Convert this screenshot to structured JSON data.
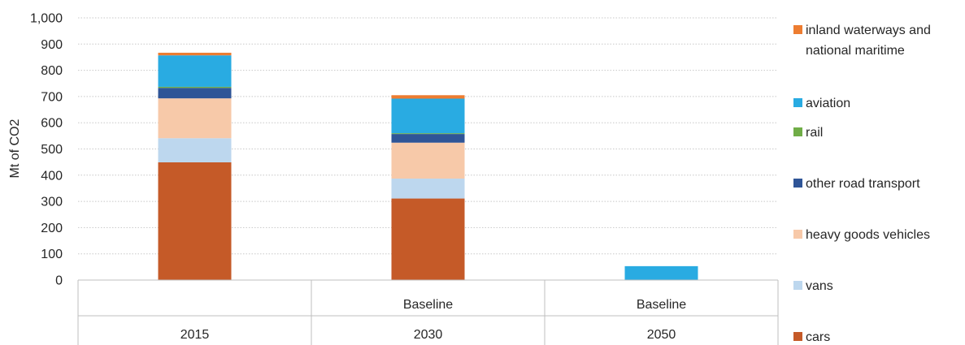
{
  "chart_data": {
    "type": "bar",
    "stacked": true,
    "ylabel": "Mt of CO2",
    "ylim": [
      0,
      1000
    ],
    "yticks": [
      "0",
      "100",
      "200",
      "300",
      "400",
      "500",
      "600",
      "700",
      "800",
      "900",
      "1,000"
    ],
    "ytick_values": [
      0,
      100,
      200,
      300,
      400,
      500,
      600,
      700,
      800,
      900,
      1000
    ],
    "grid": "horizontal dotted",
    "legend_position": "right",
    "categories": [
      {
        "label_top": "",
        "label_bottom": "2015"
      },
      {
        "label_top": "Baseline",
        "label_bottom": "2030"
      },
      {
        "label_top": "Baseline",
        "label_bottom": "2050"
      }
    ],
    "series": [
      {
        "name": "cars",
        "color": "#c55a28",
        "values": [
          449,
          311,
          0
        ]
      },
      {
        "name": "vans",
        "color": "#bdd7ee",
        "values": [
          92,
          76,
          0
        ]
      },
      {
        "name": "heavy goods vehicles",
        "color": "#f7c9a9",
        "values": [
          152,
          137,
          0
        ]
      },
      {
        "name": "other road transport",
        "color": "#2f5597",
        "values": [
          40,
          33,
          0
        ]
      },
      {
        "name": "rail",
        "color": "#70ad47",
        "values": [
          4,
          3,
          0
        ]
      },
      {
        "name": "aviation",
        "color": "#29abe2",
        "values": [
          120,
          132,
          53
        ]
      },
      {
        "name": "inland waterways and national maritime",
        "color": "#ed7d31",
        "values": [
          10,
          13,
          0
        ]
      }
    ],
    "legend_lines": [
      [
        "cars"
      ],
      [
        "vans"
      ],
      [
        "heavy goods vehicles"
      ],
      [
        "other road transport"
      ],
      [
        "rail"
      ],
      [
        "aviation"
      ],
      [
        "inland waterways and",
        "national maritime"
      ]
    ]
  }
}
